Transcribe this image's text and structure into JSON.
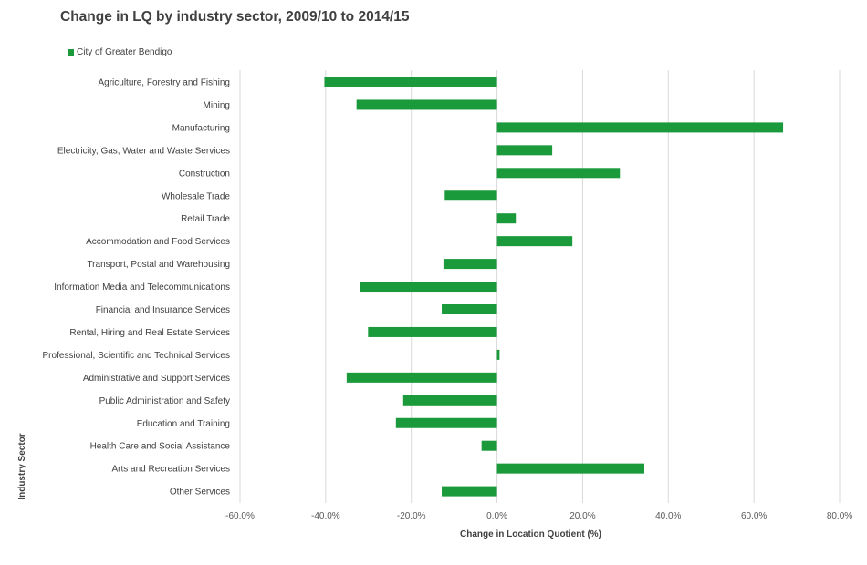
{
  "chart_data": {
    "type": "bar",
    "orientation": "horizontal",
    "title": "Change in LQ by industry sector, 2009/10 to 2014/15",
    "xlabel": "Change in Location Quotient (%)",
    "ylabel": "Industry Sector",
    "xlim": [
      -60,
      80
    ],
    "xticks": [
      -60,
      -40,
      -20,
      0,
      20,
      40,
      60,
      80
    ],
    "xtick_labels": [
      "-60.0%",
      "-40.0%",
      "-20.0%",
      "0.0%",
      "20.0%",
      "40.0%",
      "60.0%",
      "80.0%"
    ],
    "grid": "vertical",
    "legend_position": "top-left",
    "color": "#1a9a3a",
    "categories": [
      "Agriculture, Forestry and Fishing",
      "Mining",
      "Manufacturing",
      "Electricity, Gas, Water and Waste Services",
      "Construction",
      "Wholesale Trade",
      "Retail Trade",
      "Accommodation and Food Services",
      "Transport, Postal and Warehousing",
      "Information Media and Telecommunications",
      "Financial and Insurance Services",
      "Rental, Hiring and Real Estate Services",
      "Professional, Scientific and Technical Services",
      "Administrative and Support Services",
      "Public Administration and Safety",
      "Education and Training",
      "Health Care and Social Assistance",
      "Arts and Recreation Services",
      "Other Services"
    ],
    "series": [
      {
        "name": "City of Greater Bendigo",
        "values": [
          -40.3,
          -32.8,
          66.8,
          12.9,
          28.7,
          -12.2,
          4.4,
          17.6,
          -12.5,
          -31.9,
          -12.9,
          -30.1,
          0.6,
          -35.1,
          -21.9,
          -23.6,
          -3.6,
          34.4,
          -12.9
        ]
      }
    ]
  }
}
